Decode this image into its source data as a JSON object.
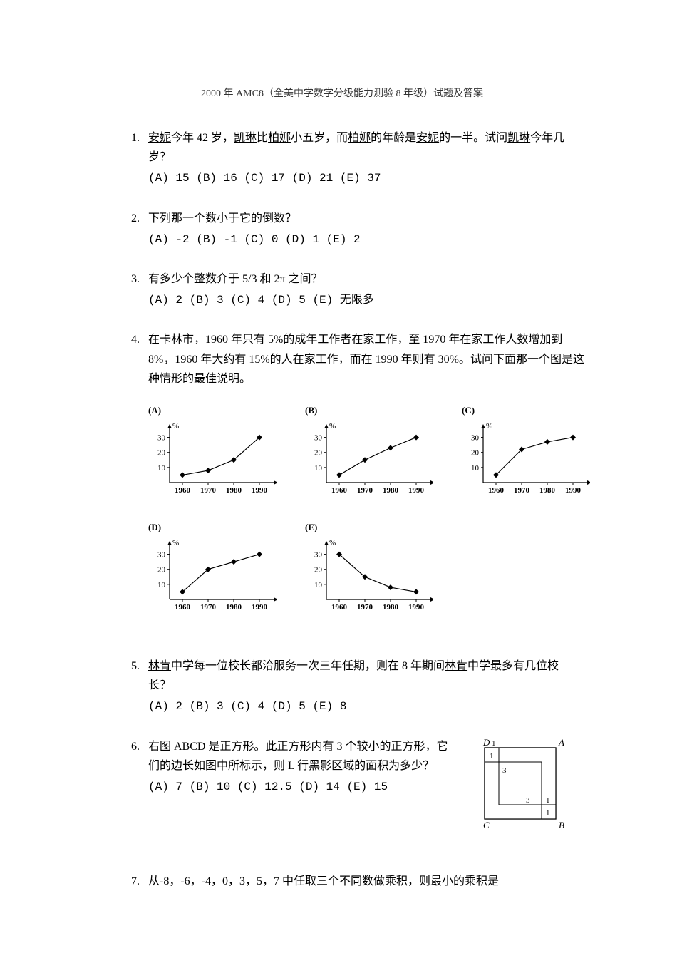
{
  "title": "2000 年 AMC8（全美中学数学分级能力测验 8 年级）试题及答案",
  "questions": {
    "q1": {
      "num": "1.",
      "text_pre": "",
      "u1": "安妮",
      "text_a": "今年 42 岁，",
      "u2": "凯琳",
      "text_b": "比",
      "u3": "柏娜",
      "text_c": "小五岁，而",
      "u4": "柏娜",
      "text_d": "的年龄是",
      "u5": "安妮",
      "text_e": "的一半。试问",
      "u6": "凯琳",
      "text_f": "今年几岁？",
      "choices": "(A) 15   (B) 16   (C) 17   (D) 21   (E) 37"
    },
    "q2": {
      "num": "2.",
      "text": "下列那一个数小于它的倒数？",
      "choices": "(A) -2   (B) -1   (C) 0   (D) 1   (E) 2"
    },
    "q3": {
      "num": "3.",
      "text": "有多少个整数介于 5/3 和 2π 之间？",
      "choices": "(A) 2   (B) 3   (C) 4   (D) 5   (E) 无限多"
    },
    "q4": {
      "num": "4.",
      "text_a": "在",
      "u1": "卡林",
      "text_b": "市，1960 年只有 5%的成年工作者在家工作，至 1970 年在家工作人数增加到 8%，1960 年大约有 15%的人在家工作，而在 1990 年则有 30%。试问下面那一个图是这种情形的最佳说明。"
    },
    "q5": {
      "num": "5.",
      "u1": "林肯",
      "text_a": "中学每一位校长都洽服务一次三年任期，则在 8 年期间",
      "u2": "林肯",
      "text_b": "中学最多有几位校长？",
      "choices": "(A) 2   (B) 3   (C) 4   (D) 5   (E) 8"
    },
    "q6": {
      "num": "6.",
      "text": "右图 ABCD 是正方形。此正方形内有 3 个较小的正方形，它们的边长如图中所标示，则 L 行黑影区域的面积为多少？",
      "choices": "(A) 7   (B) 10   (C) 12.5   (D) 14   (E) 15",
      "fig": {
        "D": "D",
        "A": "A",
        "C": "C",
        "B": "B",
        "n1": "1",
        "n3a": "3",
        "n3b": "3",
        "n1b": "1",
        "n1c": "1"
      }
    },
    "q7": {
      "num": "7.",
      "text": "从-8，-6，-4，0，3，5，7 中任取三个不同数做乘积，则最小的乘积是"
    }
  },
  "charts": {
    "common": {
      "width": 180,
      "height": 110,
      "yticks": [
        10,
        20,
        30
      ],
      "xticks": [
        "1960",
        "1970",
        "1980",
        "1990"
      ],
      "ylabel": "%",
      "axis_color": "#000000",
      "tick_fontsize": 11,
      "grid": false,
      "marker": "diamond",
      "marker_size": 4,
      "line_width": 1.2,
      "line_color": "#000000"
    },
    "series": {
      "A": {
        "label": "(A)",
        "values": [
          5,
          8,
          15,
          30
        ],
        "connect": true
      },
      "B": {
        "label": "(B)",
        "values": [
          5,
          15,
          23,
          30
        ],
        "connect": true
      },
      "C": {
        "label": "(C)",
        "values": [
          5,
          22,
          27,
          30
        ],
        "connect": true
      },
      "D": {
        "label": "(D)",
        "values": [
          5,
          20,
          25,
          30
        ],
        "connect": true
      },
      "E": {
        "label": "(E)",
        "values": [
          30,
          15,
          8,
          5
        ],
        "connect": true
      }
    }
  }
}
